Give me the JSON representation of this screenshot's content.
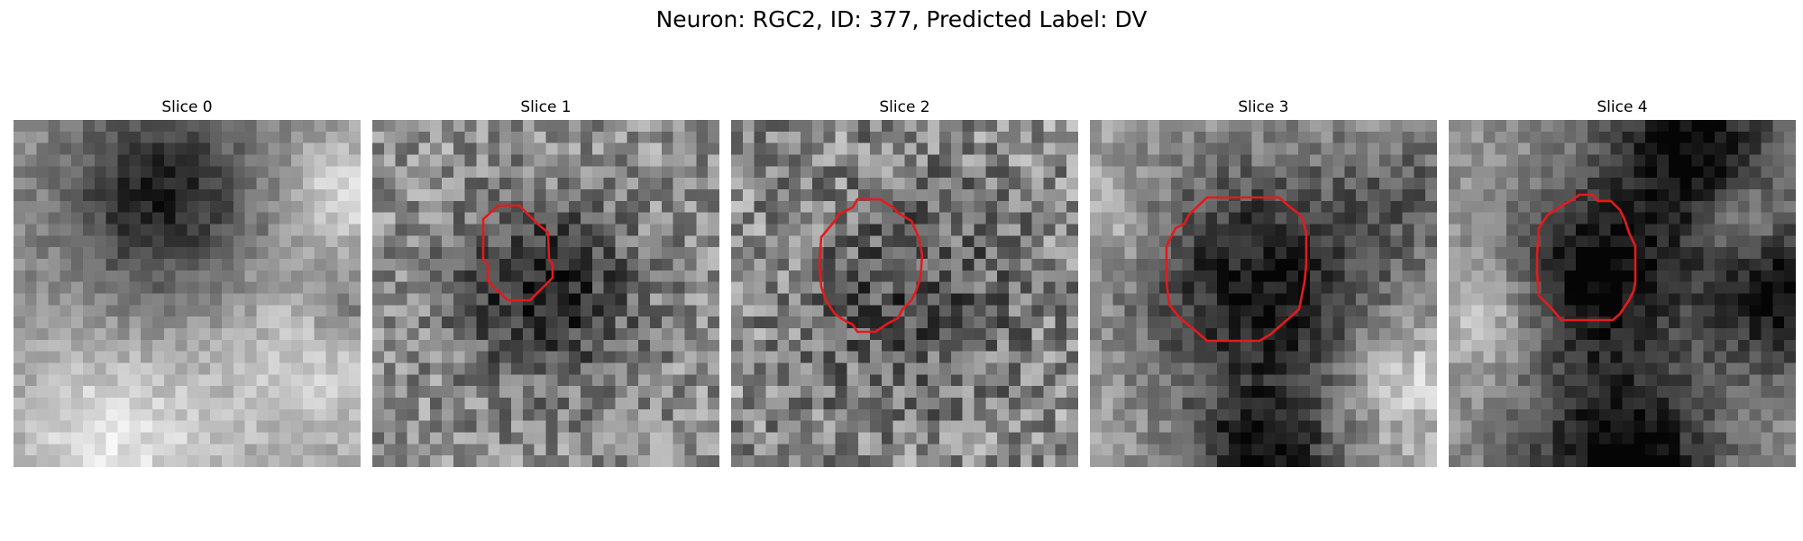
{
  "figure": {
    "title": "Neuron: RGC2, ID: 377, Predicted Label: DV"
  },
  "slices": [
    {
      "label": "Slice 0",
      "roi": false,
      "seed": 11,
      "noise": 0.2,
      "blobs": [
        [
          0.42,
          0.2,
          0.18,
          -0.42
        ],
        [
          0.45,
          0.55,
          0.3,
          -0.1
        ],
        [
          0.3,
          0.92,
          0.22,
          0.35
        ],
        [
          0.85,
          0.7,
          0.2,
          0.25
        ],
        [
          0.95,
          0.55,
          0.06,
          -0.25
        ],
        [
          0.95,
          0.2,
          0.1,
          0.3
        ]
      ],
      "base": 0.58
    },
    {
      "label": "Slice 1",
      "roi": true,
      "seed": 23,
      "noise": 0.42,
      "blobs": [
        [
          0.5,
          0.5,
          0.16,
          -0.4
        ],
        [
          0.5,
          0.5,
          0.3,
          -0.08
        ]
      ],
      "base": 0.58
    },
    {
      "label": "Slice 2",
      "roi": true,
      "seed": 37,
      "noise": 0.5,
      "blobs": [
        [
          0.52,
          0.51,
          0.22,
          -0.25
        ]
      ],
      "base": 0.55
    },
    {
      "label": "Slice 3",
      "roi": true,
      "seed": 51,
      "noise": 0.28,
      "blobs": [
        [
          0.5,
          0.48,
          0.25,
          -0.55
        ],
        [
          0.5,
          1.0,
          0.15,
          -0.55
        ],
        [
          0.05,
          0.3,
          0.1,
          0.15
        ],
        [
          0.95,
          0.2,
          0.15,
          -0.2
        ],
        [
          0.9,
          0.75,
          0.12,
          0.25
        ]
      ],
      "base": 0.62
    },
    {
      "label": "Slice 4",
      "roi": true,
      "seed": 67,
      "noise": 0.22,
      "blobs": [
        [
          0.42,
          0.45,
          0.18,
          -0.55
        ],
        [
          0.5,
          0.98,
          0.2,
          -0.6
        ],
        [
          0.7,
          0.07,
          0.18,
          -0.55
        ],
        [
          0.97,
          0.5,
          0.16,
          -0.55
        ],
        [
          0.85,
          0.3,
          0.08,
          0.3
        ],
        [
          0.12,
          0.55,
          0.12,
          0.25
        ]
      ],
      "base": 0.58
    }
  ],
  "colors": {
    "roi_outline": "#e41a1c",
    "background": "#ffffff"
  }
}
